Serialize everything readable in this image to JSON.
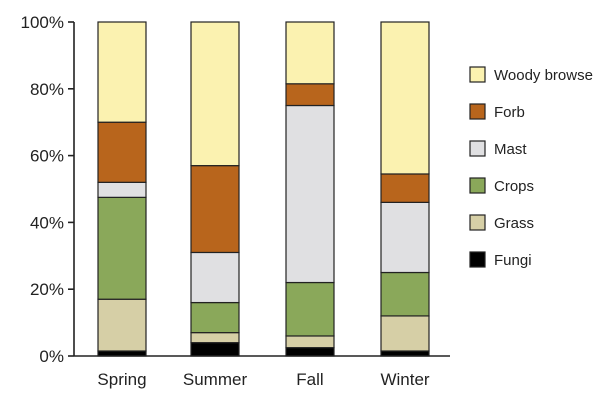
{
  "chart_data": {
    "type": "bar",
    "stacked": true,
    "title": "",
    "xlabel": "",
    "ylabel": "",
    "ylim": [
      0,
      100
    ],
    "yticks": [
      "0%",
      "20%",
      "40%",
      "60%",
      "80%",
      "100%"
    ],
    "ytick_values": [
      0,
      20,
      40,
      60,
      80,
      100
    ],
    "categories": [
      "Spring",
      "Summer",
      "Fall",
      "Winter"
    ],
    "legend_position": "right",
    "series": [
      {
        "name": "Fungi",
        "color": "#000000",
        "values": [
          1.5,
          4,
          2.5,
          1.5
        ]
      },
      {
        "name": "Grass",
        "color": "#d6cfa6",
        "values": [
          15.5,
          3,
          3.5,
          10.5
        ]
      },
      {
        "name": "Crops",
        "color": "#8aa85a",
        "values": [
          30.5,
          9,
          16,
          13
        ]
      },
      {
        "name": "Mast",
        "color": "#e0e0e2",
        "values": [
          4.5,
          15,
          53,
          21
        ]
      },
      {
        "name": "Forb",
        "color": "#b8651c",
        "values": [
          18,
          26,
          6.5,
          8.5
        ]
      },
      {
        "name": "Woody browse",
        "color": "#fbf2b0",
        "values": [
          30,
          43,
          18.5,
          45.5
        ]
      }
    ]
  }
}
